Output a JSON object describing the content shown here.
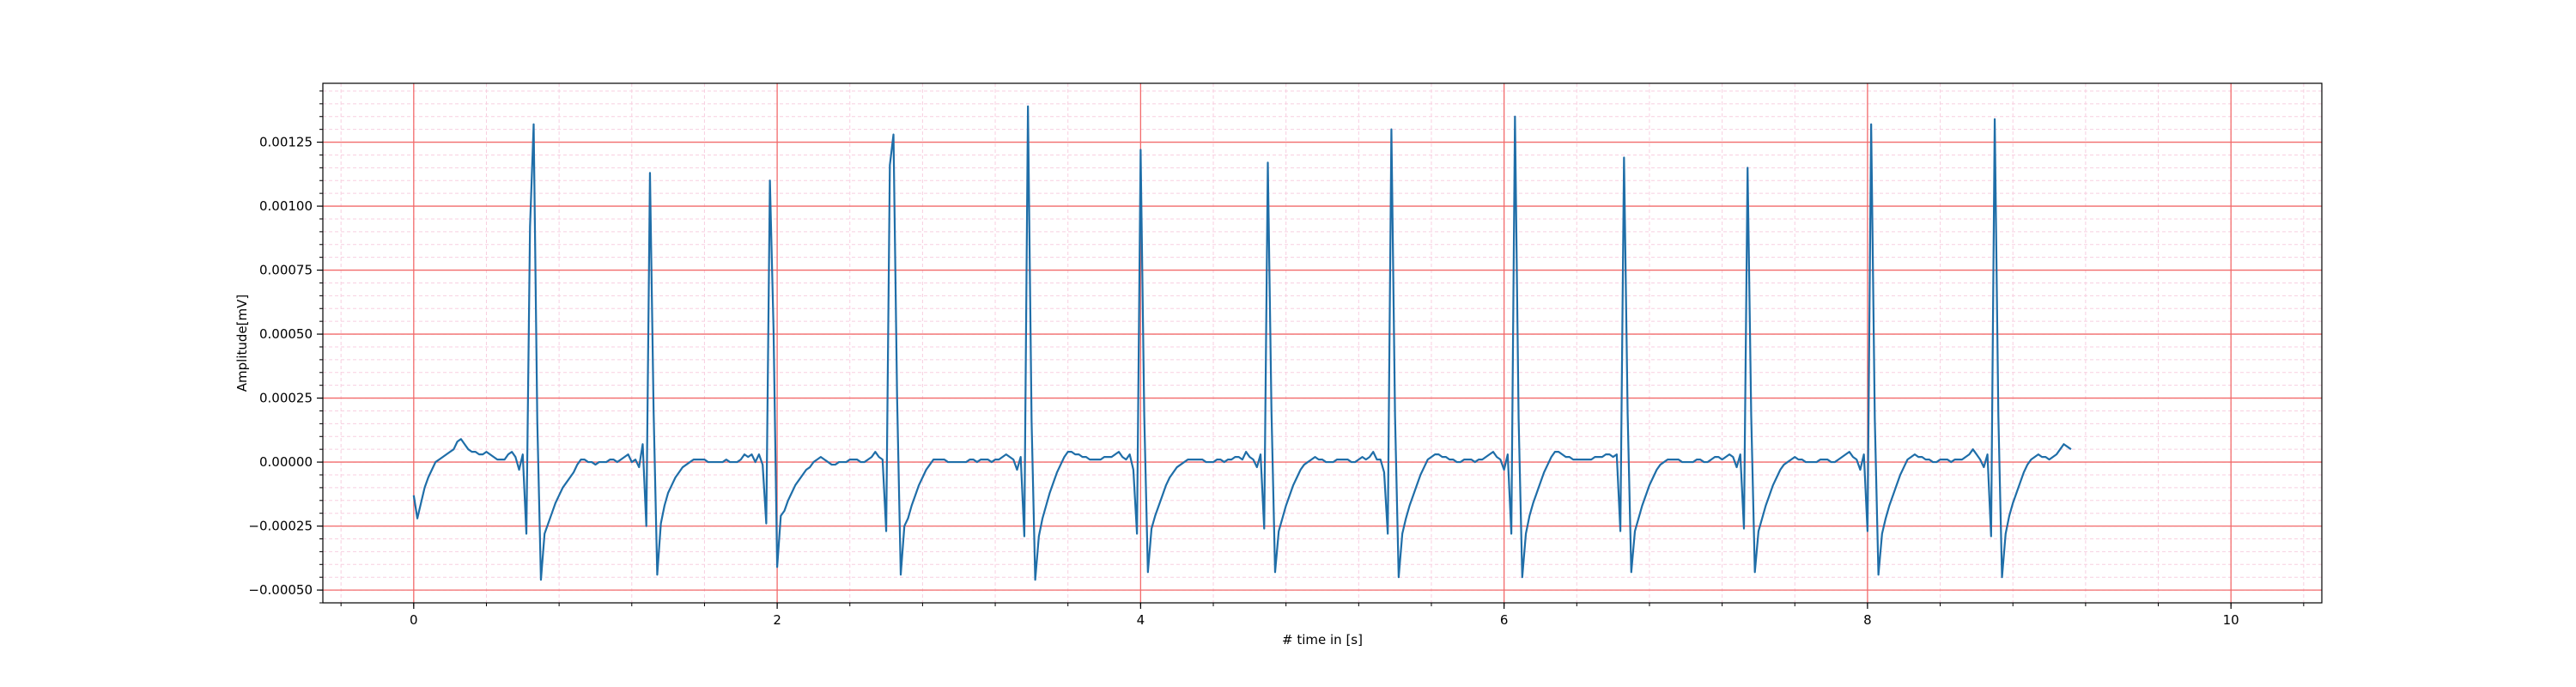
{
  "chart_data": {
    "type": "line",
    "title": "",
    "xlabel": "# time in [s]",
    "ylabel": "Amplitude[mV]",
    "xlim": [
      -0.5,
      10.5
    ],
    "ylim": [
      -0.00055,
      0.00148
    ],
    "x_ticks": [
      0,
      2,
      4,
      6,
      8,
      10
    ],
    "x_tick_labels": [
      "0",
      "2",
      "4",
      "6",
      "8",
      "10"
    ],
    "y_ticks": [
      -0.0005,
      -0.00025,
      0.0,
      0.00025,
      0.0005,
      0.00075,
      0.001,
      0.00125
    ],
    "y_tick_labels": [
      "−0.00050",
      "−0.00025",
      "0.00000",
      "0.00025",
      "0.00050",
      "0.00075",
      "0.00100",
      "0.00125"
    ],
    "grid": {
      "major": true,
      "minor": true,
      "major_color": "#f26b6b",
      "minor_color": "#f8cfe0"
    },
    "line_color": "#1f6ea8",
    "series": [
      {
        "sample_rate_hz": 50,
        "values": [
          -0.00013,
          -0.00022,
          -0.00016,
          -0.0001,
          -6e-05,
          -3e-05,
          0.0,
          1e-05,
          2e-05,
          3e-05,
          4e-05,
          5e-05,
          8e-05,
          9e-05,
          7e-05,
          5e-05,
          4e-05,
          4e-05,
          3e-05,
          3e-05,
          4e-05,
          3e-05,
          2e-05,
          1e-05,
          1e-05,
          1e-05,
          3e-05,
          4e-05,
          2e-05,
          -3e-05,
          3e-05,
          -0.00028,
          0.00092,
          0.00132,
          0.00016,
          -0.00046,
          -0.00028,
          -0.00024,
          -0.0002,
          -0.00016,
          -0.00013,
          -0.0001,
          -8e-05,
          -6e-05,
          -4e-05,
          -1e-05,
          1e-05,
          1e-05,
          0.0,
          0.0,
          -1e-05,
          0.0,
          0.0,
          0.0,
          1e-05,
          1e-05,
          0.0,
          1e-05,
          2e-05,
          3e-05,
          0.0,
          1e-05,
          -2e-05,
          7e-05,
          -0.00025,
          0.00113,
          0.0002,
          -0.00044,
          -0.00024,
          -0.00017,
          -0.00012,
          -9e-05,
          -6e-05,
          -4e-05,
          -2e-05,
          -1e-05,
          0.0,
          1e-05,
          1e-05,
          1e-05,
          1e-05,
          0.0,
          0.0,
          0.0,
          0.0,
          0.0,
          1e-05,
          0.0,
          0.0,
          0.0,
          1e-05,
          3e-05,
          2e-05,
          3e-05,
          0.0,
          3e-05,
          -1e-05,
          -0.00024,
          0.0011,
          0.00052,
          -0.00041,
          -0.00021,
          -0.00019,
          -0.00015,
          -0.00012,
          -9e-05,
          -7e-05,
          -5e-05,
          -3e-05,
          -2e-05,
          0.0,
          1e-05,
          2e-05,
          1e-05,
          0.0,
          -1e-05,
          -1e-05,
          0.0,
          0.0,
          0.0,
          1e-05,
          1e-05,
          1e-05,
          0.0,
          0.0,
          1e-05,
          2e-05,
          4e-05,
          2e-05,
          1e-05,
          -0.00027,
          0.00116,
          0.00128,
          0.00025,
          -0.00044,
          -0.00025,
          -0.00022,
          -0.00017,
          -0.00013,
          -9e-05,
          -6e-05,
          -3e-05,
          -1e-05,
          1e-05,
          1e-05,
          1e-05,
          1e-05,
          0.0,
          0.0,
          0.0,
          0.0,
          0.0,
          0.0,
          1e-05,
          1e-05,
          0.0,
          1e-05,
          1e-05,
          1e-05,
          0.0,
          1e-05,
          1e-05,
          2e-05,
          3e-05,
          2e-05,
          1e-05,
          -3e-05,
          2e-05,
          -0.00029,
          0.00139,
          0.00016,
          -0.00046,
          -0.00029,
          -0.00022,
          -0.00017,
          -0.00012,
          -8e-05,
          -4e-05,
          -1e-05,
          2e-05,
          4e-05,
          4e-05,
          3e-05,
          3e-05,
          2e-05,
          2e-05,
          1e-05,
          1e-05,
          1e-05,
          1e-05,
          2e-05,
          2e-05,
          2e-05,
          3e-05,
          4e-05,
          2e-05,
          1e-05,
          3e-05,
          -3e-05,
          -0.00028,
          0.00122,
          0.00018,
          -0.00043,
          -0.00026,
          -0.00021,
          -0.00017,
          -0.00013,
          -9e-05,
          -6e-05,
          -4e-05,
          -2e-05,
          -1e-05,
          0.0,
          1e-05,
          1e-05,
          1e-05,
          1e-05,
          1e-05,
          0.0,
          0.0,
          0.0,
          1e-05,
          1e-05,
          0.0,
          1e-05,
          1e-05,
          2e-05,
          2e-05,
          1e-05,
          4e-05,
          2e-05,
          1e-05,
          -2e-05,
          3e-05,
          -0.00026,
          0.00117,
          0.0002,
          -0.00043,
          -0.00027,
          -0.00022,
          -0.00017,
          -0.00013,
          -9e-05,
          -6e-05,
          -3e-05,
          -1e-05,
          0.0,
          1e-05,
          2e-05,
          1e-05,
          1e-05,
          0.0,
          0.0,
          0.0,
          1e-05,
          1e-05,
          1e-05,
          1e-05,
          0.0,
          0.0,
          1e-05,
          2e-05,
          1e-05,
          2e-05,
          4e-05,
          1e-05,
          1e-05,
          -4e-05,
          -0.00028,
          0.0013,
          0.00018,
          -0.00045,
          -0.00028,
          -0.00022,
          -0.00017,
          -0.00013,
          -9e-05,
          -5e-05,
          -2e-05,
          1e-05,
          2e-05,
          3e-05,
          3e-05,
          2e-05,
          2e-05,
          1e-05,
          1e-05,
          0.0,
          0.0,
          1e-05,
          1e-05,
          1e-05,
          0.0,
          1e-05,
          1e-05,
          2e-05,
          3e-05,
          4e-05,
          2e-05,
          1e-05,
          -3e-05,
          3e-05,
          -0.00028,
          0.00135,
          0.00017,
          -0.00045,
          -0.00028,
          -0.00021,
          -0.00016,
          -0.00012,
          -8e-05,
          -4e-05,
          -1e-05,
          2e-05,
          4e-05,
          4e-05,
          3e-05,
          2e-05,
          2e-05,
          1e-05,
          1e-05,
          1e-05,
          1e-05,
          1e-05,
          1e-05,
          2e-05,
          2e-05,
          2e-05,
          3e-05,
          3e-05,
          2e-05,
          3e-05,
          -0.00027,
          0.00119,
          0.00019,
          -0.00043,
          -0.00027,
          -0.00022,
          -0.00017,
          -0.00013,
          -9e-05,
          -6e-05,
          -3e-05,
          -1e-05,
          0.0,
          1e-05,
          1e-05,
          1e-05,
          1e-05,
          0.0,
          0.0,
          0.0,
          0.0,
          1e-05,
          1e-05,
          0.0,
          0.0,
          1e-05,
          2e-05,
          2e-05,
          1e-05,
          2e-05,
          3e-05,
          2e-05,
          -2e-05,
          3e-05,
          -0.00026,
          0.00115,
          0.00018,
          -0.00043,
          -0.00027,
          -0.00022,
          -0.00017,
          -0.00013,
          -9e-05,
          -6e-05,
          -3e-05,
          -1e-05,
          0.0,
          1e-05,
          2e-05,
          1e-05,
          1e-05,
          0.0,
          0.0,
          0.0,
          0.0,
          1e-05,
          1e-05,
          1e-05,
          0.0,
          0.0,
          1e-05,
          2e-05,
          3e-05,
          4e-05,
          2e-05,
          1e-05,
          -3e-05,
          3e-05,
          -0.00027,
          0.00132,
          0.00017,
          -0.00044,
          -0.00028,
          -0.00022,
          -0.00017,
          -0.00013,
          -9e-05,
          -5e-05,
          -2e-05,
          1e-05,
          2e-05,
          3e-05,
          2e-05,
          2e-05,
          1e-05,
          1e-05,
          0.0,
          0.0,
          1e-05,
          1e-05,
          1e-05,
          0.0,
          1e-05,
          1e-05,
          1e-05,
          2e-05,
          3e-05,
          5e-05,
          3e-05,
          1e-05,
          -2e-05,
          3e-05,
          -0.00029,
          0.00134,
          0.00018,
          -0.00045,
          -0.00028,
          -0.00021,
          -0.00016,
          -0.00012,
          -8e-05,
          -4e-05,
          -1e-05,
          1e-05,
          2e-05,
          3e-05,
          2e-05,
          2e-05,
          1e-05,
          2e-05,
          3e-05,
          5e-05,
          7e-05,
          6e-05,
          5e-05
        ]
      }
    ]
  }
}
